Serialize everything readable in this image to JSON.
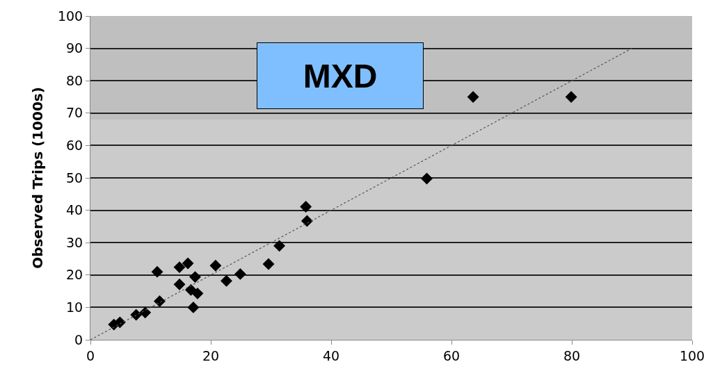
{
  "chart_data": {
    "type": "scatter",
    "ylabel": "Observed Trips (1000s)",
    "annotations": [
      "MXD"
    ],
    "series": [
      {
        "color": "#000000",
        "marker": "diamond",
        "x": [
          3.9,
          4.9,
          7.6,
          9.1,
          11.1,
          11.5,
          14.8,
          14.8,
          16.2,
          16.7,
          17.1,
          17.4,
          17.8,
          20.8,
          22.6,
          24.9,
          29.6,
          31.4,
          35.8,
          36.0,
          55.9,
          63.6,
          79.9
        ],
        "values": [
          4.7,
          5.4,
          7.7,
          8.4,
          21.0,
          11.9,
          17.1,
          22.4,
          23.6,
          15.4,
          10.0,
          19.4,
          14.3,
          22.9,
          18.2,
          20.3,
          23.4,
          29.0,
          41.1,
          36.7,
          49.8,
          75.0,
          75.0
        ]
      },
      {
        "type": "line",
        "color": "#555555",
        "line_style": "dotted",
        "marker": "none",
        "x": [
          0,
          90
        ],
        "values": [
          0,
          90
        ]
      }
    ],
    "bands": [
      {
        "axis": "y",
        "from": 68,
        "to": 100,
        "color": "#bfbfbf"
      }
    ],
    "xlim": [
      0,
      100
    ],
    "xticks": [
      0,
      20,
      40,
      60,
      80,
      100
    ],
    "ylim": [
      0,
      100
    ],
    "yticks": [
      0,
      10,
      20,
      30,
      40,
      50,
      60,
      70,
      80,
      90,
      100
    ],
    "grid": "y"
  }
}
